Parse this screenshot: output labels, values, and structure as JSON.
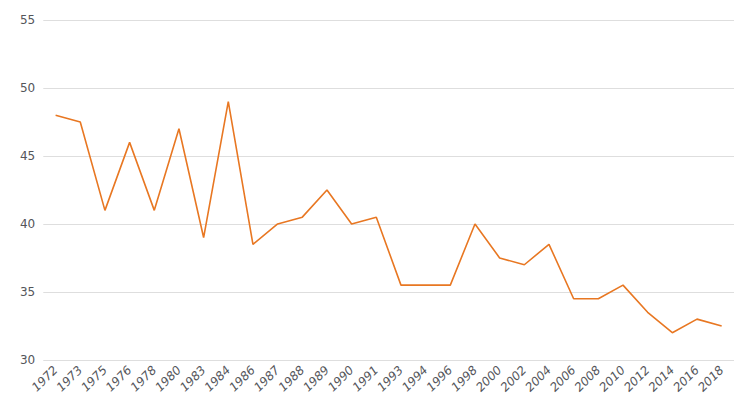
{
  "chart_data": {
    "type": "line",
    "categories": [
      "1972",
      "1973",
      "1975",
      "1976",
      "1978",
      "1980",
      "1983",
      "1984",
      "1986",
      "1987",
      "1988",
      "1989",
      "1990",
      "1991",
      "1993",
      "1994",
      "1996",
      "1998",
      "2000",
      "2002",
      "2004",
      "2006",
      "2008",
      "2010",
      "2012",
      "2014",
      "2016",
      "2018"
    ],
    "values": [
      48,
      47.5,
      41,
      46,
      41,
      47,
      39,
      49,
      38.5,
      40,
      40.5,
      42.5,
      40,
      40.5,
      35.5,
      35.5,
      35.5,
      40,
      37.5,
      37,
      38.5,
      34.5,
      34.5,
      35.5,
      33.5,
      32,
      33,
      32.5
    ],
    "color": "#E87722",
    "ylim": [
      30,
      55
    ],
    "yticks": [
      30,
      35,
      40,
      45,
      50,
      55
    ],
    "grid": true
  }
}
